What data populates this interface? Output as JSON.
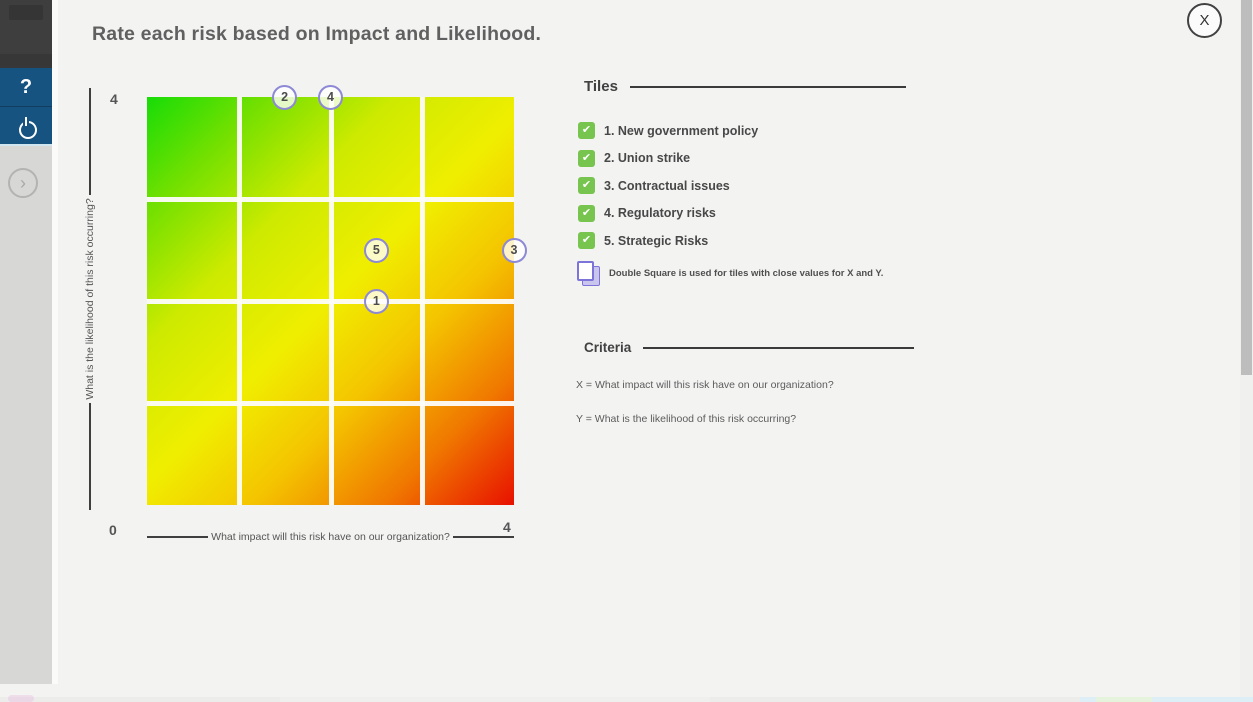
{
  "titlebar": {
    "title": "Rate each risk based on Impact and Likelihood.",
    "close_label": "X"
  },
  "sidebar": {
    "help_label": "?",
    "power_icon": "power-icon",
    "expand_glyph": "›"
  },
  "matrix": {
    "x_axis": {
      "label": "What impact will this risk have on our organization?",
      "min": "0",
      "max": "4"
    },
    "y_axis": {
      "label": "What is the likelihood of this risk occurring?",
      "min": "0",
      "max": "4"
    },
    "grid_rows": 4,
    "grid_cols": 4,
    "gradient": {
      "low": "#17dc07",
      "mid": "#f0ee00",
      "high": "#e81000"
    },
    "points": [
      {
        "id": "1",
        "x": 2.5,
        "y": 2.0
      },
      {
        "id": "2",
        "x": 1.5,
        "y": 4.0
      },
      {
        "id": "3",
        "x": 4.0,
        "y": 2.5
      },
      {
        "id": "4",
        "x": 2.0,
        "y": 4.0
      },
      {
        "id": "5",
        "x": 2.5,
        "y": 2.5
      }
    ]
  },
  "tiles_panel": {
    "heading": "Tiles",
    "check_glyph": "✔",
    "items": [
      {
        "label": "1. New government policy",
        "checked": true
      },
      {
        "label": "2. Union strike",
        "checked": true
      },
      {
        "label": "3. Contractual issues",
        "checked": true
      },
      {
        "label": "4. Regulatory risks",
        "checked": true
      },
      {
        "label": "5. Strategic Risks",
        "checked": true
      }
    ],
    "double_square_note": "Double Square is used for tiles with close values for X and Y.",
    "double_square_checked": false
  },
  "criteria_panel": {
    "heading": "Criteria",
    "line_x": "X = What impact will this risk have on our organization?",
    "line_y": "Y = What is the likelihood of this risk occurring?"
  },
  "colors": {
    "checkbox_green": "#77c44f",
    "marker_border": "#8d89d6",
    "double_square_border": "#7d74d9",
    "sidebar_blue": "#175380",
    "axis": "#3f3f3f"
  }
}
